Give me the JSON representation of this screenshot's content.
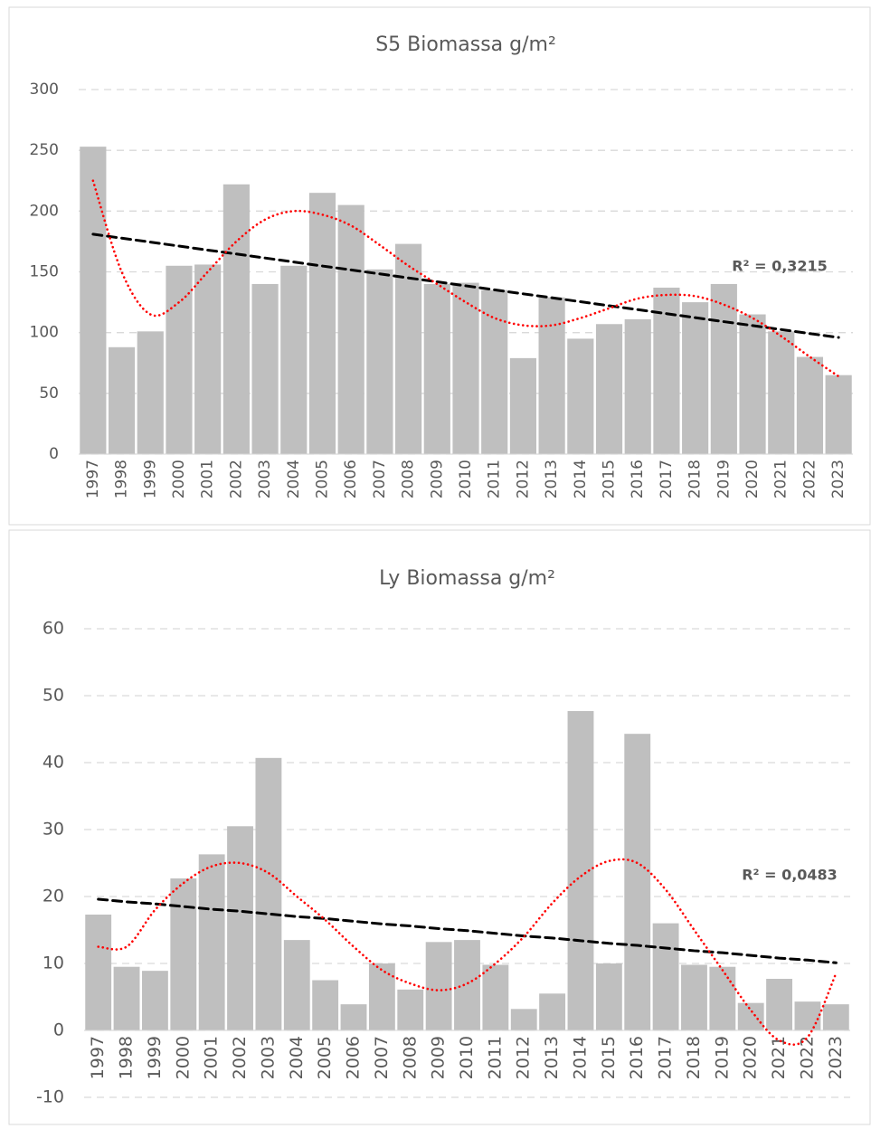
{
  "chart_data": [
    {
      "type": "bar",
      "title": "S5 Biomassa g/m²",
      "categories": [
        "1997",
        "1998",
        "1999",
        "2000",
        "2001",
        "2002",
        "2003",
        "2004",
        "2005",
        "2006",
        "2007",
        "2008",
        "2009",
        "2010",
        "2011",
        "2012",
        "2013",
        "2014",
        "2015",
        "2016",
        "2017",
        "2018",
        "2019",
        "2020",
        "2021",
        "2022",
        "2023"
      ],
      "values": [
        253,
        88,
        101,
        155,
        156,
        222,
        140,
        155,
        215,
        205,
        152,
        173,
        140,
        141,
        135,
        79,
        129,
        95,
        107,
        111,
        137,
        125,
        140,
        115,
        101,
        80,
        65
      ],
      "color": "#bfbfbf",
      "ylim": [
        0,
        300
      ],
      "yticks": [
        0,
        50,
        100,
        150,
        200,
        250,
        300
      ],
      "grid": true,
      "trendlines": [
        {
          "type": "linear",
          "color": "#000000",
          "values": [
            181,
            177.7,
            174.5,
            171.2,
            167.9,
            164.7,
            161.4,
            158.1,
            154.8,
            151.6,
            148.3,
            145.0,
            141.8,
            138.5,
            135.2,
            131.9,
            128.7,
            125.4,
            122.1,
            118.9,
            115.6,
            112.3,
            109.0,
            105.8,
            102.5,
            99.2,
            96
          ]
        },
        {
          "type": "polynomial",
          "color": "#ff0000",
          "values": [
            225,
            150,
            115,
            125,
            150,
            175,
            193,
            200,
            197,
            188,
            172,
            155,
            140,
            125,
            112,
            106,
            106,
            112,
            120,
            128,
            131,
            130,
            123,
            112,
            97,
            80,
            64
          ]
        }
      ],
      "annotation": "R² = 0,3215"
    },
    {
      "type": "bar",
      "title": "Ly Biomassa g/m²",
      "categories": [
        "1997",
        "1998",
        "1999",
        "2000",
        "2001",
        "2002",
        "2003",
        "2004",
        "2005",
        "2006",
        "2007",
        "2008",
        "2009",
        "2010",
        "2011",
        "2012",
        "2013",
        "2014",
        "2015",
        "2016",
        "2017",
        "2018",
        "2019",
        "2020",
        "2021",
        "2022",
        "2023"
      ],
      "values": [
        17.3,
        9.5,
        8.9,
        22.7,
        26.3,
        30.5,
        40.7,
        13.5,
        7.5,
        3.9,
        10,
        6.1,
        13.2,
        13.5,
        9.8,
        3.2,
        5.5,
        47.7,
        10,
        44.3,
        16,
        9.8,
        9.5,
        4.1,
        7.7,
        4.3,
        3.9
      ],
      "color": "#bfbfbf",
      "ylim": [
        -10,
        60
      ],
      "yticks": [
        -10,
        0,
        10,
        20,
        30,
        40,
        50,
        60
      ],
      "grid": true,
      "trendlines": [
        {
          "type": "linear",
          "color": "#000000",
          "values": [
            19.6,
            19.2,
            18.9,
            18.5,
            18.1,
            17.8,
            17.4,
            17.0,
            16.7,
            16.3,
            15.9,
            15.6,
            15.2,
            14.9,
            14.5,
            14.1,
            13.8,
            13.4,
            13.0,
            12.7,
            12.3,
            11.9,
            11.6,
            11.2,
            10.8,
            10.5,
            10.1
          ]
        },
        {
          "type": "polynomial",
          "color": "#ff0000",
          "values": [
            12.5,
            12.5,
            18,
            22,
            24.5,
            25,
            23.5,
            20,
            16.5,
            12.5,
            9,
            7,
            6,
            7,
            10,
            14,
            19,
            23,
            25.3,
            25,
            21,
            15,
            9,
            3,
            -1.5,
            -1,
            8.5
          ]
        }
      ],
      "annotation": "R² = 0,0483"
    }
  ]
}
